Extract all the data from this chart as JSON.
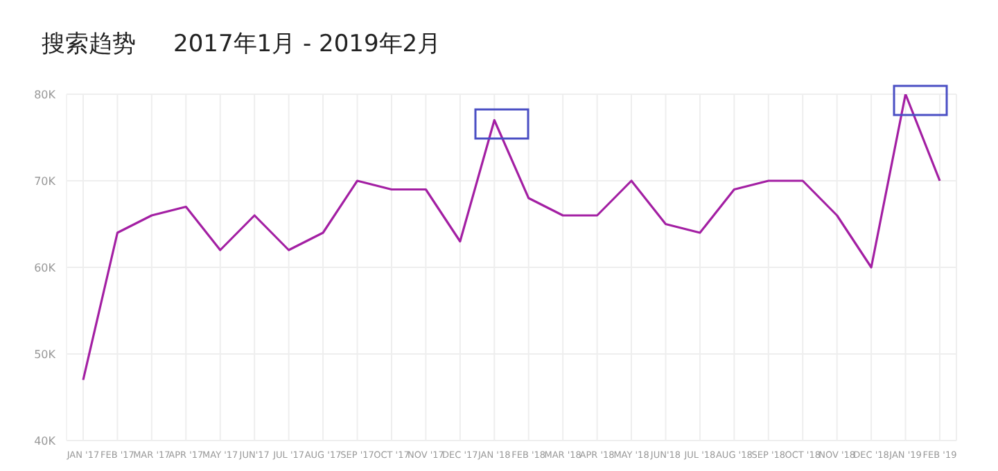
{
  "chart_data": {
    "type": "line",
    "title": "搜索趋势     2017年1月 - 2019年2月",
    "categories": [
      "JAN '17",
      "FEB '17",
      "MAR '17",
      "APR '17",
      "MAY '17",
      "JUN'17",
      "JUL '17",
      "AUG '17",
      "SEP '17",
      "OCT '17",
      "NOV '17",
      "DEC '17",
      "JAN '18",
      "FEB '18",
      "MAR '18",
      "APR '18",
      "MAY '18",
      "JUN'18",
      "JUL '18",
      "AUG '18",
      "SEP '18",
      "OCT '18",
      "NOV '18",
      "DEC '18",
      "JAN '19",
      "FEB '19"
    ],
    "series": [
      {
        "color": "#a31fa3",
        "values": [
          47000,
          64000,
          66000,
          67000,
          62000,
          66000,
          62000,
          64000,
          70000,
          69000,
          69000,
          63000,
          77000,
          68000,
          66000,
          66000,
          70000,
          65000,
          64000,
          69000,
          70000,
          70000,
          66000,
          60000,
          80000,
          70000
        ]
      }
    ],
    "ylim": [
      40000,
      80000
    ],
    "yticks": [
      {
        "value": 40000,
        "label": "40K"
      },
      {
        "value": 50000,
        "label": "50K"
      },
      {
        "value": 60000,
        "label": "60K"
      },
      {
        "value": 70000,
        "label": "70K"
      },
      {
        "value": 80000,
        "label": "80K"
      }
    ],
    "grid": true,
    "marker": "none",
    "line_style": "solid"
  }
}
